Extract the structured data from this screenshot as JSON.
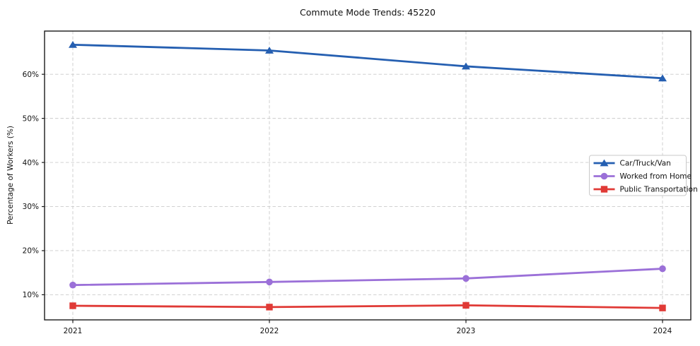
{
  "chart_data": {
    "type": "line",
    "title": "Commute Mode Trends: 45220",
    "xlabel": "",
    "ylabel": "Percentage of Workers (%)",
    "categories": [
      "2021",
      "2022",
      "2023",
      "2024"
    ],
    "series": [
      {
        "name": "Car/Truck/Van",
        "marker": "triangle",
        "color": "#255fb1",
        "values": [
          66.7,
          65.4,
          61.8,
          59.1
        ]
      },
      {
        "name": "Worked from Home",
        "marker": "circle",
        "color": "#9b70d8",
        "values": [
          12.2,
          12.9,
          13.7,
          15.9
        ]
      },
      {
        "name": "Public Transportation",
        "marker": "square",
        "color": "#e03a36",
        "values": [
          7.5,
          7.2,
          7.6,
          7.0
        ]
      }
    ],
    "yticks": [
      10,
      20,
      30,
      40,
      50,
      60
    ],
    "ytick_suffix": "%",
    "ylim": [
      4.3,
      69.8
    ],
    "grid": true,
    "grid_style": "dashed",
    "legend_position": "center-right",
    "colors": {
      "background": "#ffffff",
      "grid": "#cbcbcb",
      "spine": "#1a1a1a",
      "legend_border": "#c9c9c9",
      "legend_background": "#ffffff",
      "text": "#111111"
    }
  }
}
